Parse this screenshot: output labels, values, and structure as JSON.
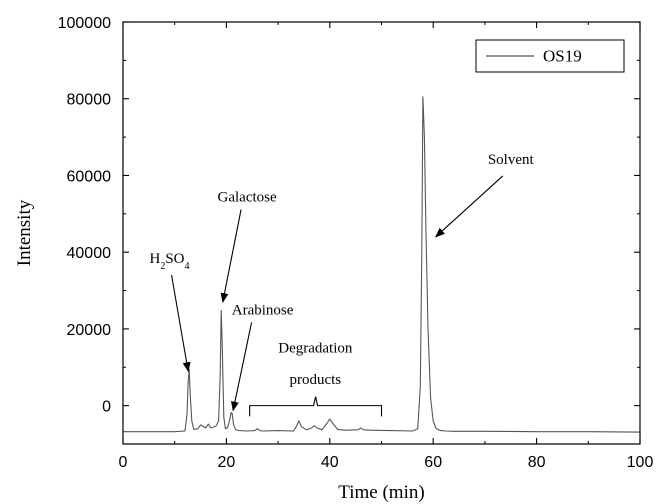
{
  "chart_data": {
    "type": "line",
    "title": "",
    "xlabel": "Time (min)",
    "ylabel": "Intensity",
    "xlim": [
      0,
      100
    ],
    "ylim": [
      -10000,
      100000
    ],
    "x_ticks": [
      0,
      20,
      40,
      60,
      80,
      100
    ],
    "y_ticks": [
      0,
      20000,
      40000,
      60000,
      80000,
      100000
    ],
    "x_tick_labels": [
      "0",
      "20",
      "40",
      "60",
      "80",
      "100"
    ],
    "y_tick_labels": [
      "0",
      "20000",
      "40000",
      "60000",
      "80000",
      "100000"
    ],
    "legend": {
      "position": "top-right"
    },
    "grid": false,
    "series": [
      {
        "name": "OS19",
        "color": "#555555",
        "x": [
          0,
          10,
          12.0,
          12.4,
          12.6,
          12.8,
          13.0,
          13.3,
          13.7,
          14.5,
          15.0,
          15.5,
          16.0,
          16.5,
          17.0,
          17.5,
          18.0,
          18.5,
          18.8,
          19.0,
          19.2,
          19.5,
          19.8,
          20.2,
          20.6,
          20.9,
          21.1,
          21.4,
          21.8,
          22.5,
          24,
          25.5,
          26.0,
          26.5,
          27,
          30,
          33.0,
          33.5,
          34.0,
          34.5,
          35.5,
          36.5,
          37.0,
          37.5,
          38.5,
          39.5,
          40.0,
          40.5,
          41.5,
          43,
          45.5,
          46.0,
          46.5,
          48,
          52,
          56,
          57.0,
          57.5,
          57.8,
          58.0,
          58.3,
          58.6,
          59.0,
          59.5,
          60.0,
          60.5,
          61.0,
          61.5,
          62.5,
          64,
          70,
          80,
          90,
          100
        ],
        "y": [
          -6800,
          -6800,
          -6600,
          -2000,
          6000,
          9500,
          3000,
          -4000,
          -6200,
          -6000,
          -5000,
          -5400,
          -5800,
          -4800,
          -5800,
          -5600,
          -5300,
          -4000,
          8000,
          24800,
          15000,
          -3000,
          -6000,
          -5800,
          -4000,
          -1800,
          -2000,
          -5000,
          -6300,
          -6500,
          -6600,
          -6500,
          -6000,
          -6500,
          -6600,
          -6500,
          -6600,
          -5500,
          -4000,
          -5500,
          -6300,
          -5800,
          -5200,
          -5800,
          -6300,
          -4500,
          -3500,
          -4500,
          -6200,
          -6400,
          -6300,
          -5800,
          -6300,
          -6400,
          -6500,
          -6600,
          -6000,
          5000,
          40000,
          80500,
          70000,
          45000,
          20000,
          2000,
          -4000,
          -5800,
          -6300,
          -6500,
          -6600,
          -6700,
          -6700,
          -6800,
          -6800,
          -6900
        ]
      }
    ],
    "annotations": [
      {
        "text": "H2SO4",
        "main": "H",
        "sub1": "2",
        "mid": "SO",
        "sub2": "4",
        "at_x": 12.8,
        "at_y": 9500,
        "label_x": 9.0,
        "label_y": 37200
      },
      {
        "text": "Galactose",
        "at_x": 19.1,
        "at_y": 27000,
        "label_x": 24.0,
        "label_y": 53200
      },
      {
        "text": "Arabinose",
        "at_x": 21.1,
        "at_y": -1800,
        "label_x": 27.0,
        "label_y": 23800
      },
      {
        "text": "Degradation",
        "label_x": 37.2,
        "label_y": 13800
      },
      {
        "text": "products",
        "label_x": 37.2,
        "label_y": 5700
      },
      {
        "text": "Solvent",
        "at_x": 60.1,
        "at_y": 44000,
        "label_x": 75.0,
        "label_y": 63000
      }
    ],
    "bracket": {
      "x_start": 24.5,
      "x_end": 50.0,
      "y_bottom": -2800,
      "y_top": 0
    }
  }
}
